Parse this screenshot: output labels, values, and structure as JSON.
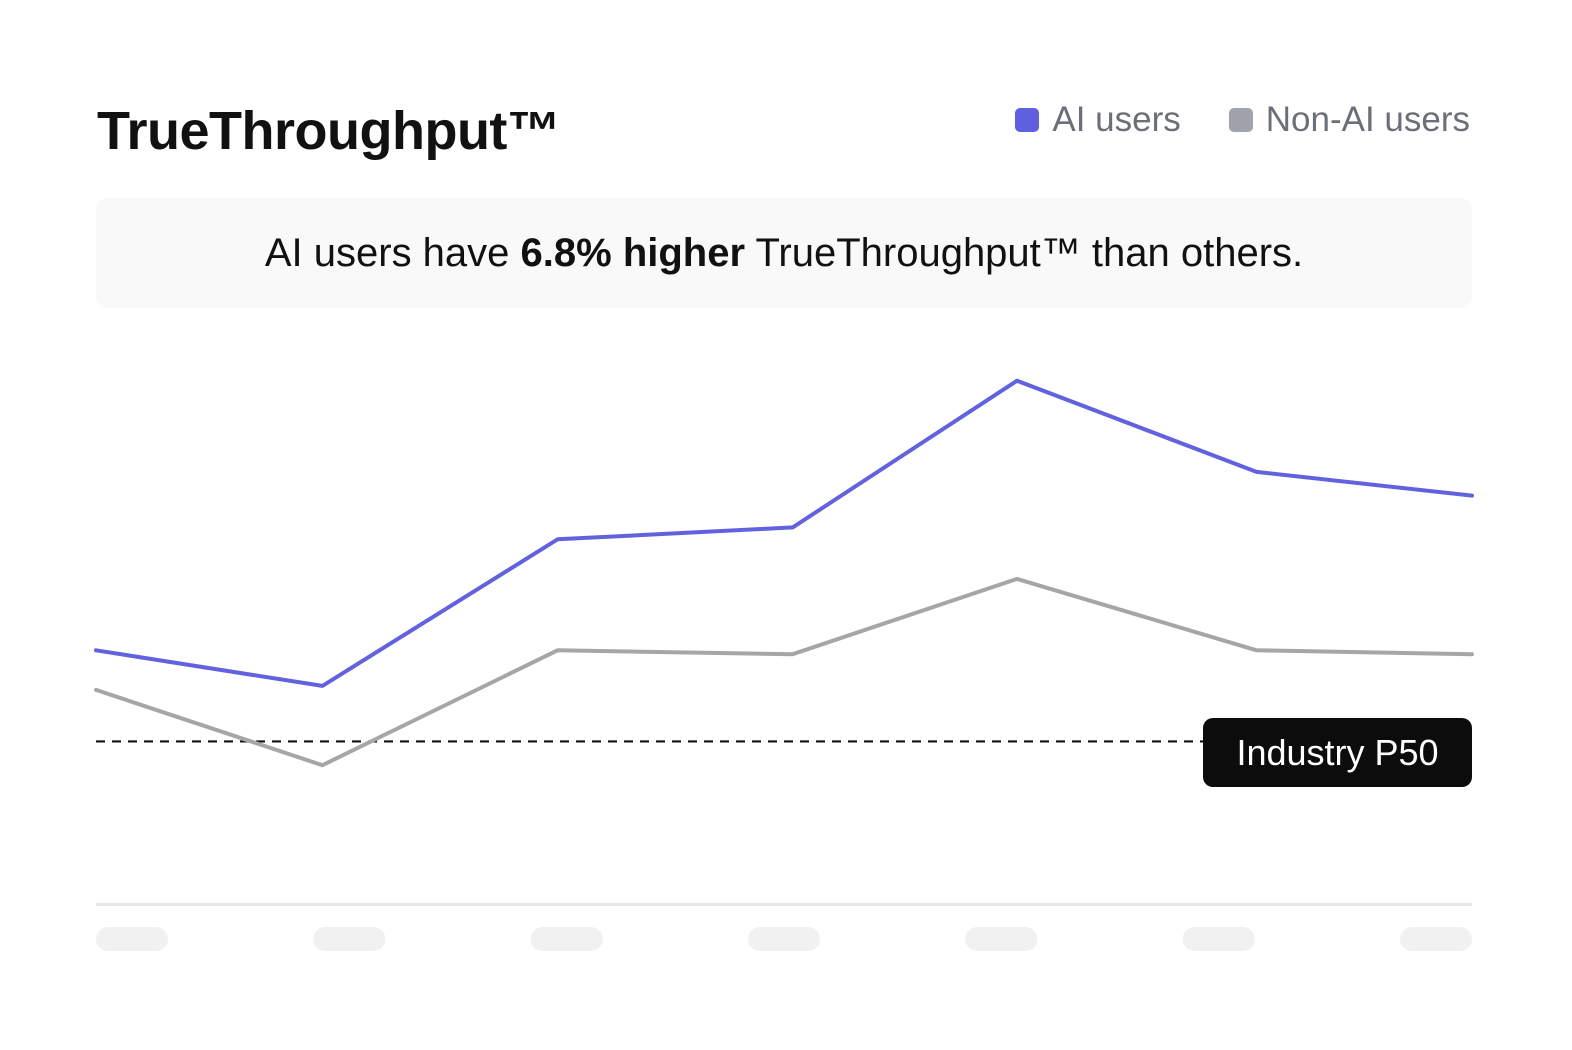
{
  "title": "TrueThroughput™",
  "legend": [
    {
      "label": "AI users",
      "color": "#5f5fe0"
    },
    {
      "label": "Non-AI users",
      "color": "#a0a3ab"
    }
  ],
  "summary": {
    "prefix": "AI users have ",
    "highlight": "6.8% higher",
    "suffix": " TrueThroughput™ than others."
  },
  "reference_line": {
    "label": "Industry P50",
    "value": 0
  },
  "chart_data": {
    "type": "line",
    "title": "TrueThroughput™",
    "xlabel": "",
    "ylabel": "",
    "x": [
      0,
      1,
      2,
      3,
      4,
      5,
      6
    ],
    "x_tick_labels": [
      "",
      "",
      "",
      "",
      "",
      "",
      ""
    ],
    "ylim": [
      -40,
      100
    ],
    "grid": false,
    "legend_position": "top-right",
    "series": [
      {
        "name": "AI users",
        "color": "#6262de",
        "points": [
          [
            0,
            23
          ],
          [
            1.04,
            14
          ],
          [
            2.12,
            51
          ],
          [
            3.2,
            54
          ],
          [
            4.23,
            91
          ],
          [
            5.33,
            68
          ],
          [
            6.32,
            62
          ]
        ]
      },
      {
        "name": "Non-AI users",
        "color": "#a6a6a6",
        "points": [
          [
            0,
            13
          ],
          [
            1.04,
            -6
          ],
          [
            2.12,
            23
          ],
          [
            3.2,
            22
          ],
          [
            4.23,
            41
          ],
          [
            5.33,
            23
          ],
          [
            6.32,
            22
          ]
        ]
      }
    ],
    "reference_lines": [
      {
        "label": "Industry P50",
        "y": 0,
        "style": "dashed"
      }
    ]
  }
}
